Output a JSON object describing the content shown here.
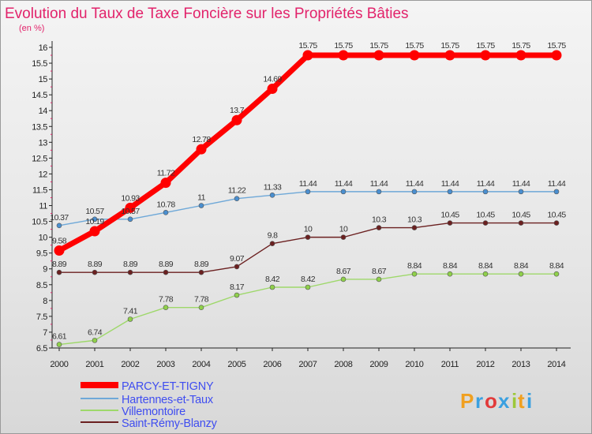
{
  "chart_data": {
    "type": "line",
    "title": "Evolution du Taux de Taxe Foncière sur les Propriétés Bâties",
    "unit_label": "(en %)",
    "xlabel": "",
    "ylabel": "",
    "x": [
      "2000",
      "2001",
      "2002",
      "2003",
      "2004",
      "2005",
      "2006",
      "2007",
      "2008",
      "2009",
      "2010",
      "2011",
      "2012",
      "2013",
      "2014"
    ],
    "ylim": [
      6.5,
      16
    ],
    "yticks": [
      "6.5",
      "7",
      "7.5",
      "8",
      "8.5",
      "9",
      "9.5",
      "10",
      "10.5",
      "11",
      "11.5",
      "12",
      "12.5",
      "13",
      "13.5",
      "14",
      "14.5",
      "15",
      "15.5",
      "16"
    ],
    "grid": false,
    "legend_position": "bottom-left",
    "series": [
      {
        "name": "PARCY-ET-TIGNY",
        "color": "#ff0000",
        "marker_color": "#ff0000",
        "values": [
          9.58,
          10.19,
          10.93,
          11.72,
          12.78,
          13.7,
          14.69,
          15.75,
          15.75,
          15.75,
          15.75,
          15.75,
          15.75,
          15.75,
          15.75
        ],
        "labels": [
          "9.58",
          "10.19",
          "10.93",
          "11.72",
          "12.78",
          "13.7",
          "14.69",
          "15.75",
          "15.75",
          "15.75",
          "15.75",
          "15.75",
          "15.75",
          "15.75",
          "15.75"
        ]
      },
      {
        "name": "Hartennes-et-Taux",
        "color": "#6ea8d8",
        "marker_color": "#4a8fd0",
        "values": [
          10.37,
          10.57,
          10.57,
          10.78,
          11,
          11.22,
          11.33,
          11.44,
          11.44,
          11.44,
          11.44,
          11.44,
          11.44,
          11.44,
          11.44
        ],
        "labels": [
          "10.37",
          "10.57",
          "10.57",
          "10.78",
          "11",
          "11.22",
          "11.33",
          "11.44",
          "11.44",
          "11.44",
          "11.44",
          "11.44",
          "11.44",
          "11.44",
          "11.44"
        ]
      },
      {
        "name": "Villemontoire",
        "color": "#9ed86a",
        "marker_color": "#8fd04a",
        "values": [
          6.61,
          6.74,
          7.41,
          7.78,
          7.78,
          8.17,
          8.42,
          8.42,
          8.67,
          8.67,
          8.84,
          8.84,
          8.84,
          8.84,
          8.84
        ],
        "labels": [
          "6.61",
          "6.74",
          "7.41",
          "7.78",
          "7.78",
          "8.17",
          "8.42",
          "8.42",
          "8.67",
          "8.67",
          "8.84",
          "8.84",
          "8.84",
          "8.84",
          "8.84"
        ]
      },
      {
        "name": "Saint-Rémy-Blanzy",
        "color": "#6b2020",
        "marker_color": "#6b2020",
        "values": [
          8.89,
          8.89,
          8.89,
          8.89,
          8.89,
          9.07,
          9.8,
          10,
          10,
          10.3,
          10.3,
          10.45,
          10.45,
          10.45,
          10.45
        ],
        "labels": [
          "8.89",
          "8.89",
          "8.89",
          "8.89",
          "8.89",
          "9.07",
          "9.8",
          "10",
          "10",
          "10.3",
          "10.3",
          "10.45",
          "10.45",
          "10.45",
          "10.45"
        ]
      }
    ]
  },
  "logo": {
    "text": "Proxiti",
    "letters": [
      "P",
      "r",
      "o",
      "x",
      "i",
      "t",
      "i"
    ],
    "colors": [
      "#f0a020",
      "#3aa0e0",
      "#e23a3a",
      "#3aa0e0",
      "#9cc83a",
      "#f0a020",
      "#3aa0e0"
    ]
  }
}
